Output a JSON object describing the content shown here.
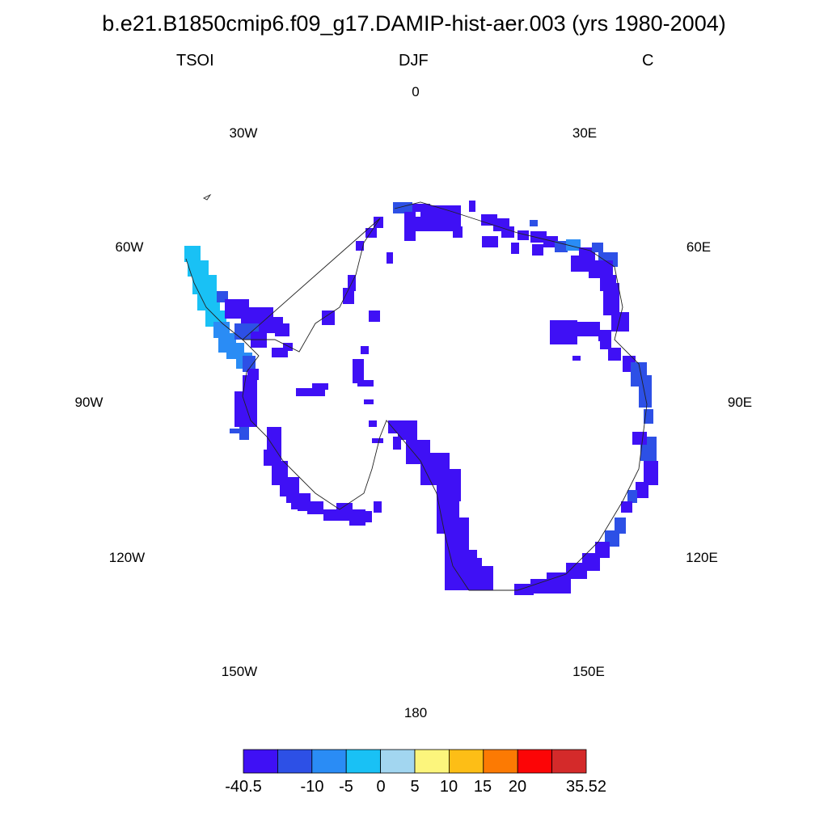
{
  "title": "b.e21.B1850cmip6.f09_g17.DAMIP-hist-aer.003 (yrs 1980-2004)",
  "left_label": "TSOI",
  "center_label": "DJF",
  "right_label": "C",
  "longitude_labels": {
    "lon0": "0",
    "lon30e": "30E",
    "lon60e": "60E",
    "lon90e": "90E",
    "lon120e": "120E",
    "lon150e": "150E",
    "lon180": "180",
    "lon150w": "150W",
    "lon120w": "120W",
    "lon90w": "90W",
    "lon60w": "60W",
    "lon30w": "30W"
  },
  "colorbar": {
    "colors": [
      "#3f10f5",
      "#2d50e6",
      "#2a8cf5",
      "#19c1f5",
      "#a2d6f0",
      "#fcf57c",
      "#fdbe16",
      "#fc7a03",
      "#fc0506",
      "#d42a2a"
    ],
    "labels": {
      "min": "-40.5",
      "t1": "-10",
      "t2": "-5",
      "t3": "0",
      "t4": "5",
      "t5": "10",
      "t6": "15",
      "t7": "20",
      "max": "35.52"
    }
  },
  "field_colors": {
    "cold": "#3f10f5",
    "cool": "#2d50e6",
    "mid": "#2a8cf5",
    "light": "#19c1f5"
  }
}
